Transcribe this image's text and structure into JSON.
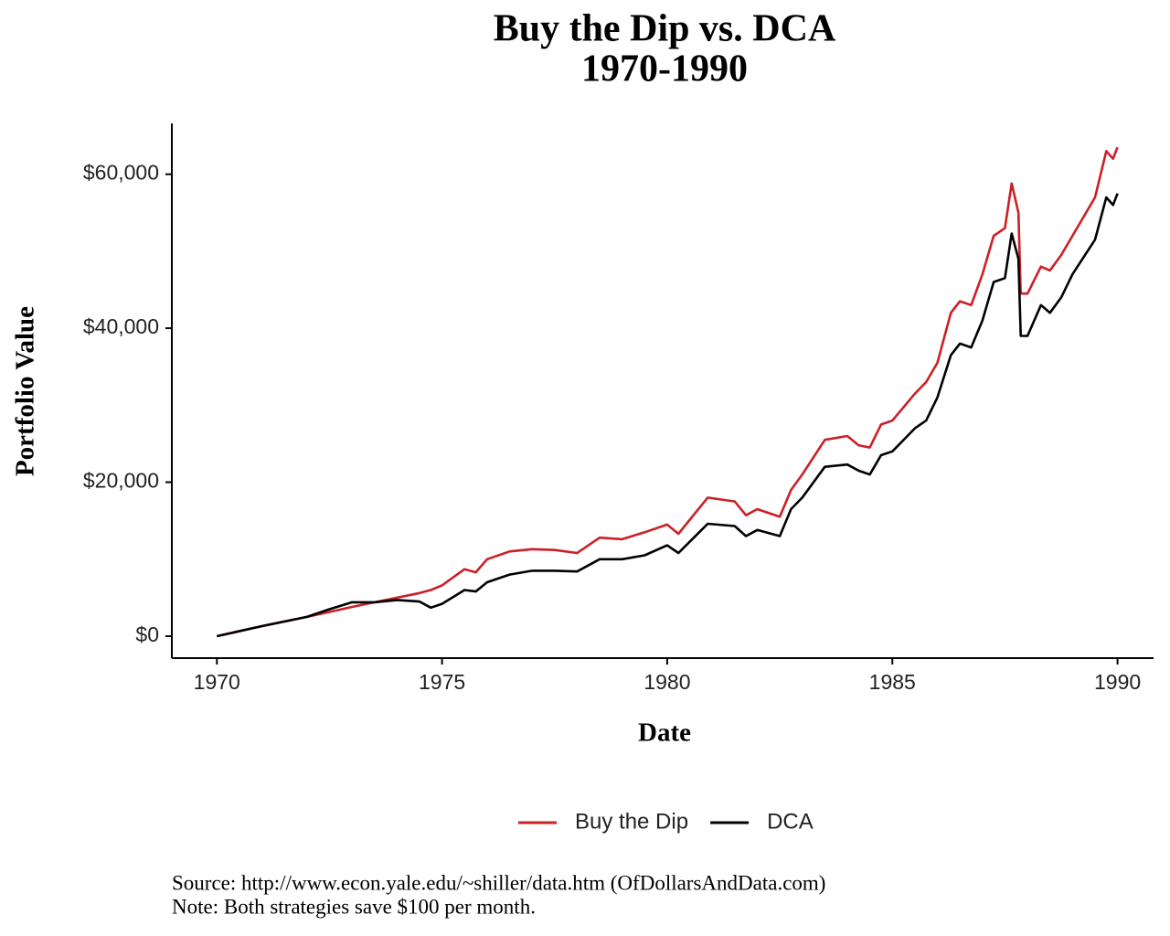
{
  "chart_data": {
    "type": "line",
    "title": "Buy the Dip vs. DCA",
    "subtitle": "1970-1990",
    "x_label": "Date",
    "y_label": "Portfolio Value",
    "x": [
      1970,
      1971,
      1972,
      1972.5,
      1973,
      1973.5,
      1974,
      1974.5,
      1974.75,
      1975,
      1975.5,
      1975.75,
      1976,
      1976.5,
      1977,
      1977.5,
      1978,
      1978.5,
      1979,
      1979.5,
      1980,
      1980.25,
      1980.9,
      1981.5,
      1981.75,
      1982,
      1982.5,
      1982.75,
      1983,
      1983.5,
      1984,
      1984.25,
      1984.5,
      1984.75,
      1985,
      1985.5,
      1985.75,
      1986,
      1986.3,
      1986.5,
      1986.75,
      1987,
      1987.25,
      1987.5,
      1987.65,
      1987.8,
      1987.85,
      1988,
      1988.3,
      1988.5,
      1988.75,
      1989,
      1989.5,
      1989.75,
      1989.9,
      1990
    ],
    "series": [
      {
        "name": "Buy the Dip",
        "color": "#cc1f26",
        "values": [
          0,
          1300,
          2500,
          3150,
          3800,
          4400,
          5000,
          5600,
          6000,
          6600,
          8700,
          8300,
          10000,
          11000,
          11300,
          11200,
          10800,
          12800,
          12600,
          13500,
          14500,
          13300,
          18000,
          17500,
          15700,
          16500,
          15500,
          19000,
          21000,
          25500,
          26000,
          24800,
          24500,
          27500,
          28000,
          31500,
          33000,
          35500,
          42000,
          43500,
          43000,
          47000,
          52000,
          53000,
          58800,
          55000,
          44500,
          44500,
          48000,
          47500,
          49500,
          52000,
          57000,
          63000,
          62000,
          63500
        ]
      },
      {
        "name": "DCA",
        "color": "#000000",
        "values": [
          0,
          1300,
          2500,
          3500,
          4400,
          4400,
          4700,
          4500,
          3700,
          4200,
          6000,
          5800,
          7000,
          8000,
          8500,
          8500,
          8400,
          10000,
          10000,
          10500,
          11800,
          10800,
          14600,
          14300,
          13000,
          13800,
          13000,
          16500,
          18000,
          22000,
          22300,
          21500,
          21000,
          23500,
          24000,
          27000,
          28000,
          31000,
          36500,
          38000,
          37500,
          41000,
          46000,
          46500,
          52300,
          49000,
          39000,
          39000,
          43000,
          42000,
          44000,
          47000,
          51500,
          57000,
          56000,
          57500
        ]
      }
    ],
    "xlim": [
      1969,
      1990.8
    ],
    "xticks": [
      1970,
      1975,
      1980,
      1985,
      1990
    ],
    "ylim": [
      -2850,
      66600
    ],
    "yticks": [
      {
        "value": 0,
        "label": "$0"
      },
      {
        "value": 20000,
        "label": "$20,000"
      },
      {
        "value": 40000,
        "label": "$40,000"
      },
      {
        "value": 60000,
        "label": "$60,000"
      }
    ],
    "grid": false,
    "legend": "bottom",
    "notes": [
      "Source:  http://www.econ.yale.edu/~shiller/data.htm (OfDollarsAndData.com)",
      "Note: Both strategies save $100 per month."
    ]
  }
}
